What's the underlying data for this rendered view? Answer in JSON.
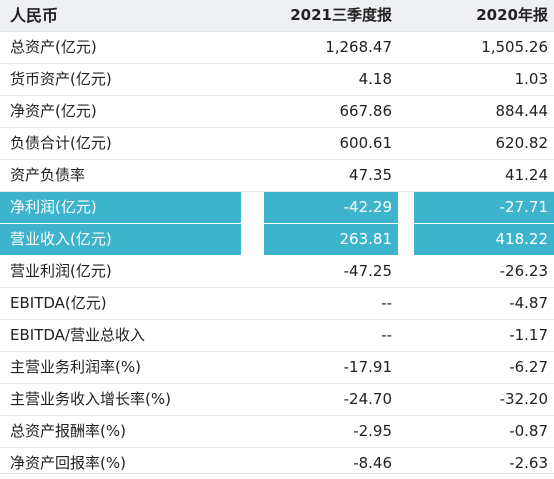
{
  "header": {
    "currency": "人民币",
    "col1": "2021三季度报",
    "col2": "2020年报"
  },
  "rows": [
    {
      "label": "总资产(亿元)",
      "v1": "1,268.47",
      "v2": "1,505.26",
      "highlight": false
    },
    {
      "label": "货币资产(亿元)",
      "v1": "4.18",
      "v2": "1.03",
      "highlight": false
    },
    {
      "label": "净资产(亿元)",
      "v1": "667.86",
      "v2": "884.44",
      "highlight": false
    },
    {
      "label": "负债合计(亿元)",
      "v1": "600.61",
      "v2": "620.82",
      "highlight": false
    },
    {
      "label": "资产负债率",
      "v1": "47.35",
      "v2": "41.24",
      "highlight": false
    },
    {
      "label": "净利润(亿元)",
      "v1": "-42.29",
      "v2": "-27.71",
      "highlight": true
    },
    {
      "label": "营业收入(亿元)",
      "v1": "263.81",
      "v2": "418.22",
      "highlight": true
    },
    {
      "label": "营业利润(亿元)",
      "v1": "-47.25",
      "v2": "-26.23",
      "highlight": false
    },
    {
      "label": "EBITDA(亿元)",
      "v1": "--",
      "v2": "-4.87",
      "highlight": false
    },
    {
      "label": "EBITDA/营业总收入",
      "v1": "--",
      "v2": "-1.17",
      "highlight": false
    },
    {
      "label": "主营业务利润率(%)",
      "v1": "-17.91",
      "v2": "-6.27",
      "highlight": false
    },
    {
      "label": "主营业务收入增长率(%)",
      "v1": "-24.70",
      "v2": "-32.20",
      "highlight": false
    },
    {
      "label": "总资产报酬率(%)",
      "v1": "-2.95",
      "v2": "-0.87",
      "highlight": false
    },
    {
      "label": "净资产回报率(%)",
      "v1": "-8.46",
      "v2": "-2.63",
      "highlight": false
    }
  ],
  "colors": {
    "header_bg": "#eef0f4",
    "highlight_bg": "#3eb3cc",
    "highlight_text": "#ffffff",
    "text": "#222222",
    "row_border": "#e3e6eb"
  }
}
